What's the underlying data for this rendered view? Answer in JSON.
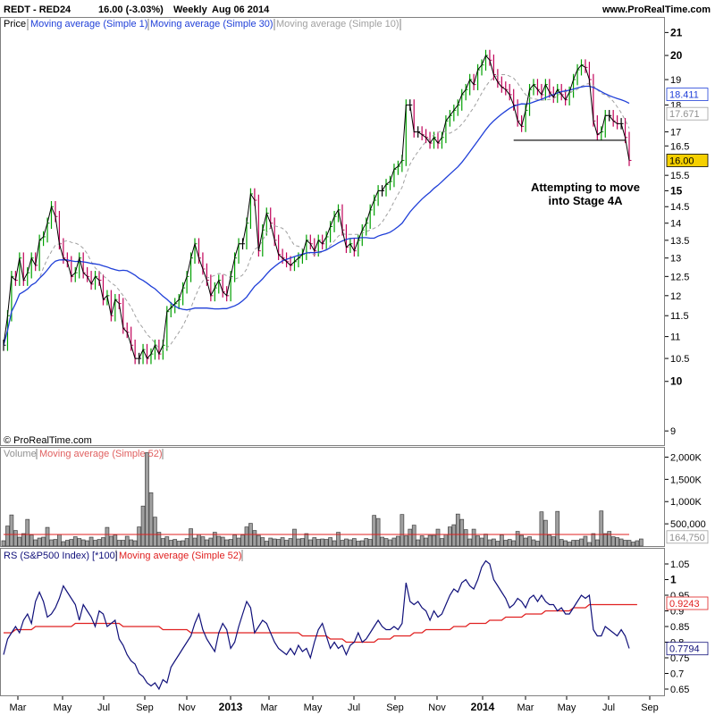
{
  "header": {
    "symbol": "REDT - RED24",
    "quote": "16.00 (-3.03%)",
    "period": "Weekly",
    "date": "Aug 06 2014",
    "site": "www.ProRealTime.com"
  },
  "copyright": "© ProRealTime.com",
  "annotation": [
    "Attempting to move",
    "into Stage 4A"
  ],
  "colors": {
    "up": "#00a000",
    "down": "#c00058",
    "flat": "#000000",
    "ma30": "#1f3fd8",
    "ma10": "#a0a0a0",
    "ma52": "#e02020",
    "rs": "#10107a",
    "volume": "#a0a0a0",
    "value_box": "#f5d000"
  },
  "chart_data": [
    {
      "type": "bar",
      "panel": "price",
      "legend": [
        "Price",
        "Moving average (Simple 1)",
        "Moving average (Simple 30)",
        "Moving average (Simple 10)"
      ],
      "y_scale": "log",
      "ylim": [
        8.8,
        21.5
      ],
      "y_ticks": [
        "9",
        "10",
        "10.5",
        "11",
        "11.5",
        "12",
        "12.5",
        "13",
        "13.5",
        "14",
        "14.5",
        "15",
        "15.5",
        "16.5",
        "17",
        "18",
        "19",
        "20",
        "21"
      ],
      "y_ticks_bold": [
        "10",
        "15",
        "20",
        "21"
      ],
      "last_values": [
        "18.411",
        "17.671",
        "16.00"
      ],
      "x_labels": [
        "Mar",
        "May",
        "Jul",
        "Sep",
        "Nov",
        "2013",
        "Mar",
        "May",
        "Jul",
        "Sep",
        "Nov",
        "2014",
        "Mar",
        "May",
        "Jul",
        "Sep"
      ],
      "x_labels_bold": [
        "2013",
        "2014"
      ],
      "support_line": 16.7,
      "close": [
        10.8,
        11.5,
        12.5,
        12.4,
        13.0,
        12.4,
        12.6,
        13.0,
        12.8,
        13.5,
        13.6,
        14.0,
        14.5,
        14.2,
        13.4,
        13.0,
        12.9,
        12.5,
        12.6,
        13.0,
        12.6,
        12.5,
        12.3,
        12.5,
        12.4,
        11.9,
        12.0,
        11.5,
        11.9,
        11.8,
        11.2,
        11.1,
        10.8,
        10.5,
        10.5,
        10.7,
        10.5,
        10.6,
        10.8,
        10.6,
        10.8,
        11.6,
        11.7,
        11.8,
        11.9,
        12.2,
        12.5,
        13.0,
        13.4,
        13.0,
        12.7,
        12.4,
        12.0,
        12.2,
        12.4,
        12.1,
        12.0,
        12.5,
        13.0,
        13.4,
        13.4,
        14.0,
        14.9,
        14.7,
        13.2,
        13.8,
        14.3,
        14.0,
        13.5,
        13.1,
        13.0,
        12.9,
        12.8,
        12.9,
        13.0,
        13.1,
        13.5,
        13.4,
        13.2,
        13.5,
        13.4,
        13.6,
        13.9,
        14.2,
        14.4,
        13.8,
        13.3,
        13.4,
        13.2,
        13.5,
        13.8,
        14.0,
        14.4,
        14.7,
        15.0,
        15.0,
        15.2,
        15.3,
        15.7,
        15.8,
        16.0,
        18.0,
        18.0,
        17.0,
        17.0,
        16.9,
        16.8,
        16.6,
        16.8,
        16.6,
        16.8,
        17.4,
        17.6,
        17.8,
        18.0,
        18.4,
        18.6,
        19.0,
        18.8,
        19.4,
        19.6,
        20.0,
        19.8,
        19.2,
        18.9,
        18.7,
        18.6,
        18.4,
        18.0,
        17.4,
        17.2,
        17.8,
        18.6,
        18.8,
        18.6,
        18.4,
        18.8,
        18.5,
        18.3,
        18.6,
        18.4,
        18.2,
        18.5,
        19.0,
        19.4,
        19.6,
        19.5,
        19.0,
        17.4,
        16.9,
        17.0,
        17.6,
        17.6,
        17.4,
        17.3,
        17.3,
        16.8,
        16.0
      ]
    },
    {
      "type": "bar",
      "panel": "volume",
      "legend": [
        "Volume",
        "Moving average (Simple 52)"
      ],
      "y_ticks": [
        "500,000",
        "1,000K",
        "1,500K",
        "2,000K"
      ],
      "ylim": [
        0,
        2150000
      ],
      "last_values": [
        "164,750"
      ],
      "ma_level": 260000,
      "values": [
        120000,
        450000,
        700000,
        350000,
        200000,
        280000,
        600000,
        250000,
        140000,
        180000,
        200000,
        420000,
        140000,
        150000,
        260000,
        100000,
        130000,
        150000,
        210000,
        170000,
        140000,
        120000,
        200000,
        130000,
        150000,
        190000,
        420000,
        220000,
        250000,
        130000,
        130000,
        220000,
        140000,
        120000,
        430000,
        900000,
        2100000,
        1200000,
        650000,
        310000,
        170000,
        210000,
        130000,
        150000,
        110000,
        120000,
        170000,
        390000,
        180000,
        260000,
        210000,
        140000,
        180000,
        310000,
        220000,
        200000,
        140000,
        150000,
        250000,
        180000,
        250000,
        430000,
        510000,
        350000,
        240000,
        190000,
        110000,
        180000,
        160000,
        150000,
        190000,
        130000,
        170000,
        380000,
        160000,
        170000,
        280000,
        140000,
        190000,
        150000,
        160000,
        150000,
        190000,
        120000,
        310000,
        130000,
        160000,
        140000,
        170000,
        110000,
        120000,
        170000,
        150000,
        690000,
        620000,
        200000,
        170000,
        140000,
        180000,
        220000,
        710000,
        230000,
        380000,
        470000,
        140000,
        230000,
        180000,
        240000,
        240000,
        380000,
        170000,
        260000,
        430000,
        480000,
        720000,
        600000,
        370000,
        160000,
        380000,
        230000,
        180000,
        270000,
        140000,
        160000,
        110000,
        250000,
        130000,
        150000,
        120000,
        330000,
        240000,
        180000,
        210000,
        140000,
        110000,
        770000,
        580000,
        250000,
        210000,
        780000,
        150000,
        120000,
        90000,
        130000,
        130000,
        160000,
        220000,
        80000,
        280000,
        140000,
        790000,
        280000,
        330000,
        210000,
        190000,
        160000,
        130000,
        130000,
        90000,
        120000,
        160000
      ]
    },
    {
      "type": "line",
      "panel": "rs",
      "legend": [
        "RS (S&P500 Index) [*100]",
        "Moving average (Simple 52)"
      ],
      "ylim": [
        0.63,
        1.09
      ],
      "y_ticks": [
        "0.65",
        "0.7",
        "0.75",
        "0.8",
        "0.85",
        "0.9",
        "0.95",
        "1",
        "1.05"
      ],
      "y_ticks_bold": [
        "1"
      ],
      "last_values": [
        "0.9243",
        "0.7794"
      ],
      "series": [
        {
          "values": [
            0.76,
            0.81,
            0.83,
            0.85,
            0.83,
            0.87,
            0.89,
            0.86,
            0.93,
            0.96,
            0.93,
            0.88,
            0.89,
            0.91,
            0.94,
            0.98,
            0.96,
            0.94,
            0.92,
            0.87,
            0.92,
            0.9,
            0.88,
            0.85,
            0.9,
            0.89,
            0.85,
            0.86,
            0.87,
            0.81,
            0.79,
            0.76,
            0.74,
            0.73,
            0.7,
            0.69,
            0.67,
            0.66,
            0.67,
            0.65,
            0.68,
            0.67,
            0.72,
            0.74,
            0.76,
            0.78,
            0.8,
            0.82,
            0.86,
            0.89,
            0.84,
            0.81,
            0.79,
            0.77,
            0.83,
            0.86,
            0.84,
            0.78,
            0.8,
            0.85,
            0.89,
            0.93,
            0.91,
            0.83,
            0.85,
            0.87,
            0.86,
            0.83,
            0.8,
            0.78,
            0.77,
            0.76,
            0.78,
            0.76,
            0.79,
            0.77,
            0.78,
            0.75,
            0.8,
            0.84,
            0.86,
            0.82,
            0.78,
            0.8,
            0.78,
            0.79,
            0.76,
            0.79,
            0.8,
            0.83,
            0.8,
            0.81,
            0.83,
            0.85,
            0.87,
            0.85,
            0.84,
            0.84,
            0.85,
            0.84,
            0.86,
            0.99,
            0.93,
            0.92,
            0.93,
            0.91,
            0.9,
            0.87,
            0.9,
            0.88,
            0.89,
            0.92,
            0.95,
            0.97,
            0.96,
            0.99,
            1.0,
            0.98,
            0.97,
            1.0,
            1.04,
            1.06,
            1.05,
            1.0,
            0.98,
            0.96,
            0.94,
            0.91,
            0.92,
            0.94,
            0.93,
            0.91,
            0.94,
            0.95,
            0.93,
            0.95,
            0.93,
            0.92,
            0.92,
            0.9,
            0.91,
            0.89,
            0.89,
            0.91,
            0.93,
            0.95,
            0.94,
            0.95,
            0.84,
            0.82,
            0.82,
            0.85,
            0.84,
            0.83,
            0.82,
            0.84,
            0.82,
            0.78
          ]
        },
        {
          "values": [
            0.83,
            0.83,
            0.83,
            0.84,
            0.84,
            0.84,
            0.84,
            0.84,
            0.85,
            0.85,
            0.85,
            0.85,
            0.85,
            0.85,
            0.85,
            0.85,
            0.85,
            0.85,
            0.86,
            0.86,
            0.86,
            0.86,
            0.86,
            0.86,
            0.86,
            0.86,
            0.86,
            0.86,
            0.86,
            0.86,
            0.85,
            0.85,
            0.85,
            0.85,
            0.85,
            0.85,
            0.85,
            0.85,
            0.85,
            0.85,
            0.84,
            0.84,
            0.84,
            0.84,
            0.84,
            0.84,
            0.84,
            0.83,
            0.83,
            0.83,
            0.83,
            0.83,
            0.83,
            0.83,
            0.83,
            0.83,
            0.83,
            0.83,
            0.83,
            0.83,
            0.83,
            0.83,
            0.83,
            0.83,
            0.83,
            0.83,
            0.83,
            0.83,
            0.83,
            0.83,
            0.83,
            0.83,
            0.83,
            0.83,
            0.83,
            0.82,
            0.82,
            0.82,
            0.82,
            0.82,
            0.82,
            0.82,
            0.81,
            0.81,
            0.81,
            0.81,
            0.8,
            0.8,
            0.8,
            0.8,
            0.8,
            0.8,
            0.8,
            0.8,
            0.81,
            0.81,
            0.81,
            0.81,
            0.82,
            0.82,
            0.82,
            0.82,
            0.82,
            0.83,
            0.83,
            0.83,
            0.84,
            0.84,
            0.84,
            0.84,
            0.84,
            0.84,
            0.84,
            0.85,
            0.85,
            0.85,
            0.85,
            0.86,
            0.86,
            0.86,
            0.86,
            0.86,
            0.87,
            0.87,
            0.87,
            0.87,
            0.88,
            0.88,
            0.88,
            0.88,
            0.88,
            0.89,
            0.89,
            0.89,
            0.89,
            0.89,
            0.9,
            0.9,
            0.9,
            0.9,
            0.9,
            0.9,
            0.9,
            0.91,
            0.91,
            0.91,
            0.91,
            0.92,
            0.92,
            0.92,
            0.92,
            0.92,
            0.92,
            0.92,
            0.92,
            0.92,
            0.92,
            0.92,
            0.92,
            0.92
          ]
        }
      ]
    }
  ]
}
